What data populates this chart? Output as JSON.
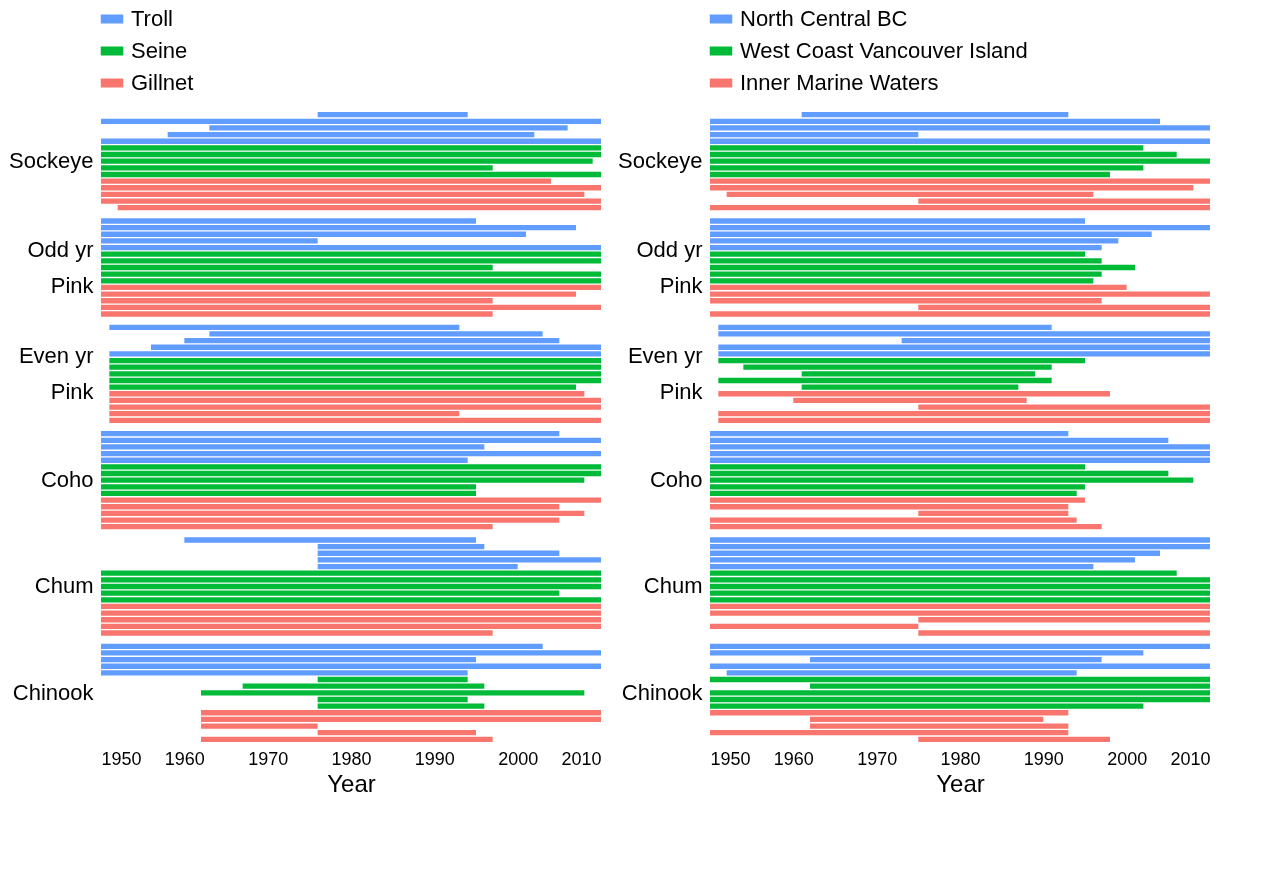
{
  "chart_data": [
    {
      "type": "bar",
      "orientation": "horizontal",
      "xlabel": "Year",
      "xlim": [
        1950,
        2010
      ],
      "xticks": [
        1950,
        1960,
        1970,
        1980,
        1990,
        2000,
        2010
      ],
      "grid": false,
      "legend": "top left",
      "categories": [
        null,
        null,
        null,
        null,
        null,
        null,
        null,
        "Sockeye",
        null,
        null,
        null,
        null,
        null,
        null,
        null,
        null,
        null,
        null,
        null,
        null,
        null,
        null,
        null,
        "Odd yr\nPink",
        null,
        null,
        null,
        null,
        null,
        null,
        null,
        null,
        null,
        null,
        null,
        null,
        null,
        null,
        null,
        "Even yr\nPink",
        null,
        null,
        null,
        null,
        null,
        null,
        null,
        null,
        null,
        null,
        null,
        null,
        null,
        null,
        null,
        "Coho",
        null,
        null,
        null,
        null,
        null,
        null,
        null,
        null,
        null,
        null,
        null,
        null,
        null,
        null,
        null,
        "Chum",
        null,
        null,
        null,
        null,
        null,
        null,
        null,
        null,
        null,
        null,
        null,
        null,
        null,
        null,
        null,
        "Chinook",
        null,
        null,
        null,
        null,
        null,
        null,
        null
      ],
      "series": [
        {
          "name": "Troll",
          "color": "#619cff",
          "base": [
            1976,
            1950,
            1963,
            1958,
            1950,
            null,
            null,
            null,
            null,
            null,
            null,
            null,
            null,
            null,
            null,
            null,
            1950,
            1950,
            1950,
            1950,
            1950,
            null,
            null,
            null,
            null,
            null,
            null,
            null,
            null,
            null,
            null,
            null,
            1951,
            1963,
            1960,
            1956,
            1951,
            null,
            null,
            null,
            null,
            null,
            null,
            null,
            null,
            null,
            null,
            null,
            1950,
            1950,
            1950,
            1950,
            1950,
            null,
            null,
            null,
            null,
            null,
            null,
            null,
            null,
            null,
            null,
            null,
            1960,
            1976,
            1976,
            1976,
            1976,
            null,
            null,
            null,
            null,
            null,
            null,
            null,
            null,
            null,
            null,
            null,
            1950,
            1950,
            1950,
            1950,
            1950,
            null,
            null,
            null,
            null,
            null,
            null,
            null,
            null,
            null,
            null
          ],
          "values": [
            18,
            60,
            43,
            44,
            60,
            null,
            null,
            null,
            null,
            null,
            null,
            null,
            null,
            null,
            null,
            null,
            45,
            57,
            51,
            26,
            60,
            null,
            null,
            null,
            null,
            null,
            null,
            null,
            null,
            null,
            null,
            null,
            42,
            40,
            45,
            54,
            59,
            null,
            null,
            null,
            null,
            null,
            null,
            null,
            null,
            null,
            null,
            null,
            55,
            60,
            46,
            60,
            44,
            null,
            null,
            null,
            null,
            null,
            null,
            null,
            null,
            null,
            null,
            null,
            35,
            20,
            29,
            34,
            24,
            null,
            null,
            null,
            null,
            null,
            null,
            null,
            null,
            null,
            null,
            null,
            53,
            60,
            45,
            60,
            44,
            null,
            null,
            null,
            null,
            null,
            null,
            null,
            null,
            null,
            null
          ]
        },
        {
          "name": "Seine",
          "color": "#00ba38",
          "base": [
            null,
            null,
            null,
            null,
            null,
            1950,
            1950,
            1950,
            1950,
            1950,
            null,
            null,
            null,
            null,
            null,
            null,
            null,
            null,
            null,
            null,
            null,
            1950,
            1950,
            1950,
            1950,
            1950,
            null,
            null,
            null,
            null,
            null,
            null,
            null,
            null,
            null,
            null,
            null,
            1951,
            1951,
            1951,
            1951,
            1951,
            null,
            null,
            null,
            null,
            null,
            null,
            null,
            null,
            null,
            null,
            null,
            1950,
            1950,
            1950,
            1950,
            1950,
            null,
            null,
            null,
            null,
            null,
            null,
            null,
            null,
            null,
            null,
            null,
            1950,
            1950,
            1950,
            1950,
            1950,
            null,
            null,
            null,
            null,
            null,
            null,
            null,
            null,
            null,
            null,
            null,
            1976,
            1967,
            1962,
            1976,
            1976,
            null,
            null,
            null,
            null,
            null
          ],
          "values": [
            null,
            null,
            null,
            null,
            null,
            60,
            60,
            59,
            47,
            60,
            null,
            null,
            null,
            null,
            null,
            null,
            null,
            null,
            null,
            null,
            null,
            60,
            60,
            47,
            60,
            60,
            null,
            null,
            null,
            null,
            null,
            null,
            null,
            null,
            null,
            null,
            null,
            59,
            59,
            59,
            59,
            56,
            null,
            null,
            null,
            null,
            null,
            null,
            null,
            null,
            null,
            null,
            null,
            60,
            60,
            58,
            45,
            45,
            null,
            null,
            null,
            null,
            null,
            null,
            null,
            null,
            null,
            null,
            null,
            60,
            60,
            60,
            55,
            60,
            null,
            null,
            null,
            null,
            null,
            null,
            null,
            null,
            null,
            null,
            null,
            18,
            29,
            46,
            18,
            20,
            null,
            null,
            null,
            null,
            null
          ]
        },
        {
          "name": "Gillnet",
          "color": "#f8766d",
          "base": [
            null,
            null,
            null,
            null,
            null,
            null,
            null,
            null,
            null,
            null,
            1950,
            1950,
            1950,
            1950,
            1952,
            null,
            null,
            null,
            null,
            null,
            null,
            null,
            null,
            null,
            null,
            null,
            1950,
            1950,
            1950,
            1950,
            1950,
            null,
            null,
            null,
            null,
            null,
            null,
            null,
            null,
            null,
            null,
            null,
            1951,
            1951,
            1951,
            1951,
            1951,
            null,
            null,
            null,
            null,
            null,
            null,
            null,
            null,
            null,
            null,
            null,
            1950,
            1950,
            1950,
            1950,
            1950,
            null,
            null,
            null,
            null,
            null,
            null,
            null,
            null,
            null,
            null,
            null,
            1950,
            1950,
            1950,
            1950,
            1950,
            null,
            null,
            null,
            null,
            null,
            null,
            null,
            null,
            null,
            null,
            null,
            1962,
            1962,
            1962,
            1976,
            1962
          ],
          "values": [
            null,
            null,
            null,
            null,
            null,
            null,
            null,
            null,
            null,
            null,
            54,
            60,
            58,
            60,
            58,
            null,
            null,
            null,
            null,
            null,
            null,
            null,
            null,
            null,
            null,
            null,
            60,
            57,
            47,
            60,
            47,
            null,
            null,
            null,
            null,
            null,
            null,
            null,
            null,
            null,
            null,
            null,
            57,
            59,
            59,
            42,
            59,
            null,
            null,
            null,
            null,
            null,
            null,
            null,
            null,
            null,
            null,
            null,
            60,
            55,
            58,
            55,
            47,
            null,
            null,
            null,
            null,
            null,
            null,
            null,
            null,
            null,
            null,
            null,
            60,
            60,
            60,
            60,
            47,
            null,
            null,
            null,
            null,
            null,
            null,
            null,
            null,
            null,
            null,
            null,
            48,
            48,
            14,
            19,
            35
          ]
        }
      ]
    },
    {
      "type": "bar",
      "orientation": "horizontal",
      "xlabel": "Year",
      "xlim": [
        1950,
        2010
      ],
      "xticks": [
        1950,
        1960,
        1970,
        1980,
        1990,
        2000,
        2010
      ],
      "grid": false,
      "legend": "top left",
      "categories": [
        null,
        null,
        null,
        null,
        null,
        null,
        null,
        "Sockeye",
        null,
        null,
        null,
        null,
        null,
        null,
        null,
        null,
        null,
        null,
        null,
        null,
        null,
        null,
        null,
        "Odd yr\nPink",
        null,
        null,
        null,
        null,
        null,
        null,
        null,
        null,
        null,
        null,
        null,
        null,
        null,
        null,
        null,
        "Even yr\nPink",
        null,
        null,
        null,
        null,
        null,
        null,
        null,
        null,
        null,
        null,
        null,
        null,
        null,
        null,
        null,
        "Coho",
        null,
        null,
        null,
        null,
        null,
        null,
        null,
        null,
        null,
        null,
        null,
        null,
        null,
        null,
        null,
        "Chum",
        null,
        null,
        null,
        null,
        null,
        null,
        null,
        null,
        null,
        null,
        null,
        null,
        null,
        null,
        null,
        "Chinook",
        null,
        null,
        null,
        null,
        null,
        null,
        null
      ],
      "series": [
        {
          "name": "North Central BC",
          "color": "#619cff",
          "base": [
            1961,
            1950,
            1950,
            1950,
            1950,
            null,
            null,
            null,
            null,
            null,
            null,
            null,
            null,
            null,
            null,
            null,
            1950,
            1950,
            1950,
            1950,
            1950,
            null,
            null,
            null,
            null,
            null,
            null,
            null,
            null,
            null,
            null,
            null,
            1951,
            1951,
            1973,
            1951,
            1951,
            null,
            null,
            null,
            null,
            null,
            null,
            null,
            null,
            null,
            null,
            null,
            1950,
            1950,
            1950,
            1950,
            1950,
            null,
            null,
            null,
            null,
            null,
            null,
            null,
            null,
            null,
            null,
            null,
            1950,
            1950,
            1950,
            1950,
            1950,
            null,
            null,
            null,
            null,
            null,
            null,
            null,
            null,
            null,
            null,
            null,
            1950,
            1950,
            1962,
            1950,
            1952,
            null,
            null,
            null,
            null,
            null,
            null,
            null,
            null,
            null,
            null
          ],
          "values": [
            32,
            54,
            60,
            25,
            60,
            null,
            null,
            null,
            null,
            null,
            null,
            null,
            null,
            null,
            null,
            null,
            45,
            60,
            53,
            49,
            47,
            null,
            null,
            null,
            null,
            null,
            null,
            null,
            null,
            null,
            null,
            null,
            40,
            59,
            37,
            59,
            59,
            null,
            null,
            null,
            null,
            null,
            null,
            null,
            null,
            null,
            null,
            null,
            43,
            55,
            60,
            60,
            60,
            null,
            null,
            null,
            null,
            null,
            null,
            null,
            null,
            null,
            null,
            null,
            60,
            60,
            54,
            51,
            46,
            null,
            null,
            null,
            null,
            null,
            null,
            null,
            null,
            null,
            null,
            null,
            60,
            52,
            35,
            60,
            42,
            null,
            null,
            null,
            null,
            null,
            null,
            null,
            null,
            null,
            null
          ]
        },
        {
          "name": "West Coast Vancouver Island",
          "color": "#00ba38",
          "base": [
            null,
            null,
            null,
            null,
            null,
            1950,
            1950,
            1950,
            1950,
            1950,
            null,
            null,
            null,
            null,
            null,
            null,
            null,
            null,
            null,
            null,
            null,
            1950,
            1950,
            1950,
            1950,
            1950,
            null,
            null,
            null,
            null,
            null,
            null,
            null,
            null,
            null,
            null,
            null,
            1951,
            1954,
            1961,
            1951,
            1961,
            null,
            null,
            null,
            null,
            null,
            null,
            null,
            null,
            null,
            null,
            null,
            1950,
            1950,
            1950,
            1950,
            1950,
            null,
            null,
            null,
            null,
            null,
            null,
            null,
            null,
            null,
            null,
            null,
            1950,
            1950,
            1950,
            1950,
            1950,
            null,
            null,
            null,
            null,
            null,
            null,
            null,
            null,
            null,
            null,
            null,
            1950,
            1962,
            1950,
            1950,
            1950,
            null,
            null,
            null,
            null,
            null
          ],
          "values": [
            null,
            null,
            null,
            null,
            null,
            52,
            56,
            60,
            52,
            48,
            null,
            null,
            null,
            null,
            null,
            null,
            null,
            null,
            null,
            null,
            null,
            45,
            47,
            51,
            47,
            46,
            null,
            null,
            null,
            null,
            null,
            null,
            null,
            null,
            null,
            null,
            null,
            44,
            37,
            28,
            40,
            26,
            null,
            null,
            null,
            null,
            null,
            null,
            null,
            null,
            null,
            null,
            null,
            45,
            55,
            58,
            45,
            44,
            null,
            null,
            null,
            null,
            null,
            null,
            null,
            null,
            null,
            null,
            null,
            56,
            60,
            60,
            60,
            60,
            null,
            null,
            null,
            null,
            null,
            null,
            null,
            null,
            null,
            null,
            null,
            60,
            48,
            60,
            60,
            52,
            null,
            null,
            null,
            null,
            null
          ]
        },
        {
          "name": "Inner Marine Waters",
          "color": "#f8766d",
          "base": [
            null,
            null,
            null,
            null,
            null,
            null,
            null,
            null,
            null,
            null,
            1950,
            1950,
            1952,
            1975,
            1950,
            null,
            null,
            null,
            null,
            null,
            null,
            null,
            null,
            null,
            null,
            null,
            1950,
            1950,
            1950,
            1975,
            1950,
            null,
            null,
            null,
            null,
            null,
            null,
            null,
            null,
            null,
            null,
            null,
            1951,
            1960,
            1975,
            1951,
            1951,
            null,
            null,
            null,
            null,
            null,
            null,
            null,
            null,
            null,
            null,
            null,
            1950,
            1950,
            1975,
            1950,
            1950,
            null,
            null,
            null,
            null,
            null,
            null,
            null,
            null,
            null,
            null,
            null,
            1950,
            1950,
            1975,
            1950,
            1975,
            null,
            null,
            null,
            null,
            null,
            null,
            null,
            null,
            null,
            null,
            null,
            1950,
            1962,
            1962,
            1950,
            1975
          ],
          "values": [
            null,
            null,
            null,
            null,
            null,
            null,
            null,
            null,
            null,
            null,
            60,
            58,
            44,
            35,
            60,
            null,
            null,
            null,
            null,
            null,
            null,
            null,
            null,
            null,
            null,
            null,
            50,
            60,
            47,
            35,
            60,
            null,
            null,
            null,
            null,
            null,
            null,
            null,
            null,
            null,
            null,
            null,
            47,
            28,
            35,
            59,
            59,
            null,
            null,
            null,
            null,
            null,
            null,
            null,
            null,
            null,
            null,
            null,
            45,
            43,
            18,
            44,
            47,
            null,
            null,
            null,
            null,
            null,
            null,
            null,
            null,
            null,
            null,
            null,
            60,
            60,
            35,
            25,
            35,
            null,
            null,
            null,
            null,
            null,
            null,
            null,
            null,
            null,
            null,
            null,
            43,
            28,
            31,
            43,
            23
          ]
        }
      ]
    }
  ]
}
